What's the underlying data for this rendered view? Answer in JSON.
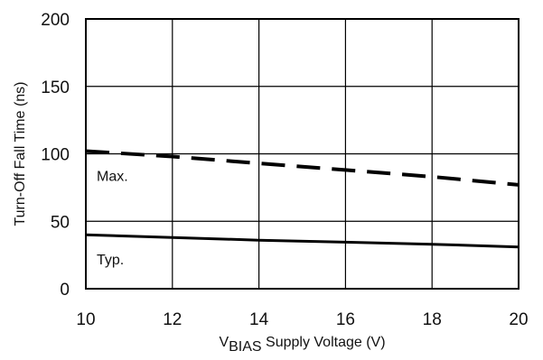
{
  "chart_data": {
    "type": "line",
    "title": "",
    "xlabel": {
      "prefix": "V",
      "subscript": "BIAS",
      "suffix": " Supply Voltage (V)"
    },
    "ylabel": "Turn-Off Fall Time (ns)",
    "xlim": [
      10,
      20
    ],
    "ylim": [
      0,
      200
    ],
    "x_ticks": [
      "10",
      "12",
      "14",
      "16",
      "18",
      "20"
    ],
    "y_ticks": [
      "0",
      "50",
      "100",
      "150",
      "200"
    ],
    "grid": true,
    "series": [
      {
        "name": "Max.",
        "style": "dashed",
        "color": "#000000",
        "x": [
          10,
          12,
          14,
          16,
          18,
          20
        ],
        "y": [
          102,
          98,
          93,
          88,
          83,
          77
        ]
      },
      {
        "name": "Typ.",
        "style": "solid",
        "color": "#000000",
        "x": [
          10,
          12,
          14,
          16,
          18,
          20
        ],
        "y": [
          40,
          38,
          36,
          34.5,
          33,
          31
        ]
      }
    ]
  }
}
